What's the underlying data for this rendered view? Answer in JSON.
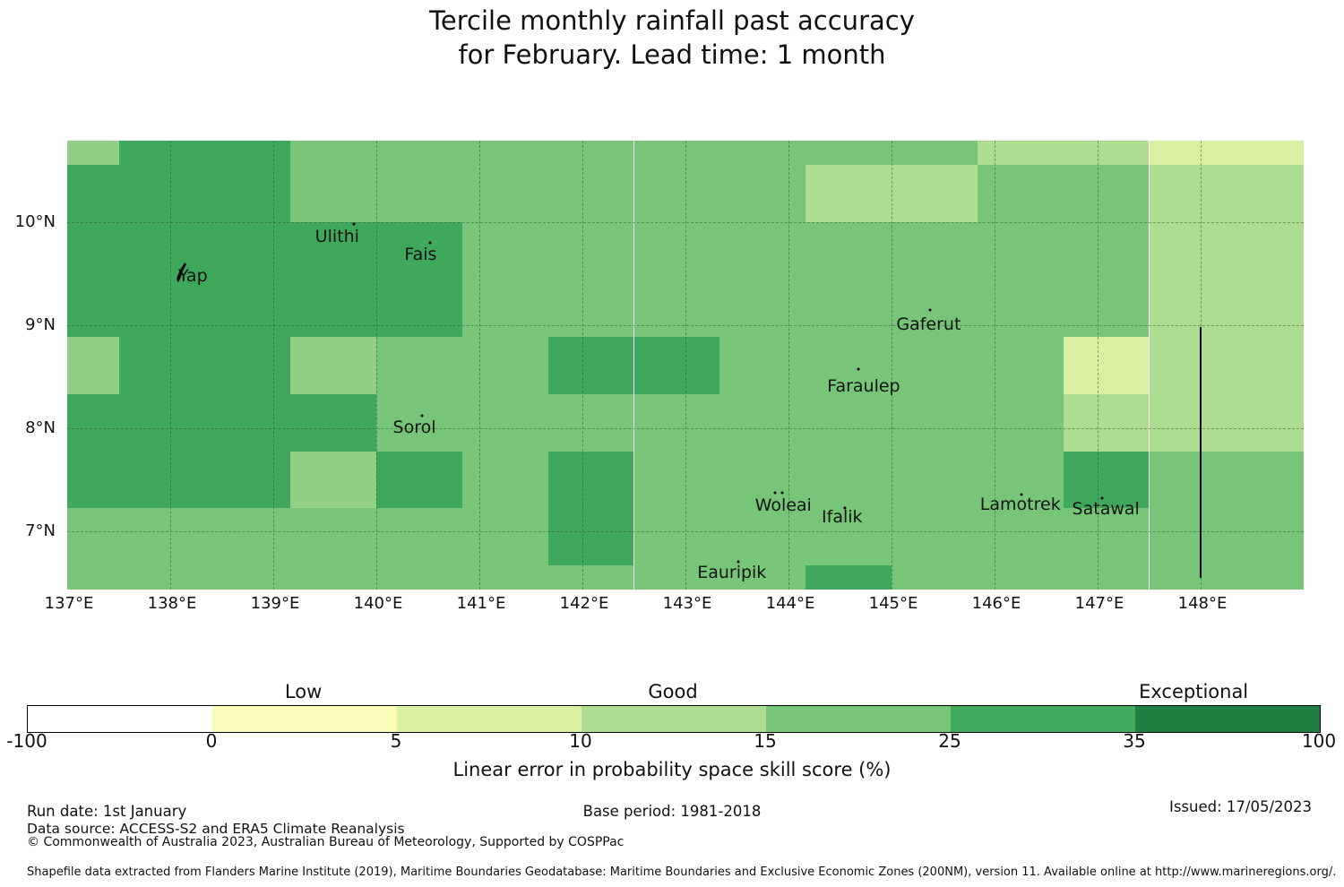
{
  "title": {
    "line1": "Tercile monthly rainfall past accuracy",
    "line2": "for February. Lead time: 1 month"
  },
  "chart_data": {
    "type": "heatmap",
    "title": "Tercile monthly rainfall past accuracy for February. Lead time: 1 month",
    "xlabel": "",
    "ylabel": "",
    "x_ticks": [
      "137°E",
      "138°E",
      "139°E",
      "140°E",
      "141°E",
      "142°E",
      "143°E",
      "144°E",
      "145°E",
      "146°E",
      "147°E",
      "148°E"
    ],
    "y_ticks": [
      "10°N",
      "9°N",
      "8°N",
      "7°N"
    ],
    "lon_range": [
      137.0,
      149.0
    ],
    "lat_range": [
      6.4348,
      10.7913
    ],
    "grid": {
      "on": true,
      "style": "dashed",
      "lons": [
        138,
        139,
        140,
        141,
        142,
        143,
        144,
        145,
        146,
        147,
        148
      ],
      "lats": [
        10,
        9,
        8,
        7
      ]
    },
    "col_bounds_lon": [
      137.0,
      137.5,
      138.3333,
      139.1667,
      140.0,
      140.8333,
      141.6667,
      142.5,
      143.3333,
      144.1667,
      145.0,
      145.8333,
      146.6667,
      147.5,
      148.3333,
      149.0
    ],
    "row_bounds_lat": [
      10.7913,
      10.5556,
      10.0,
      9.4444,
      8.8889,
      8.3333,
      7.7778,
      7.2222,
      6.6667,
      6.4348
    ],
    "cells_legend": "rows top-to-bottom; codes: D=25-35%, M=15-25%, N=~13-15%, L=10-15%, P=5-10% skill score bins",
    "cells": [
      "NDDMMMMMMMMLLPP",
      "DDDMMMMMMLLMMLL",
      "DDDDDMMMMMMMMLL",
      "DDDDDMMMMMMMMLL",
      "NDDNMMDDMMMMPLL",
      "DDDDMMMMMMMMLLL",
      "DDDNDMDMMMMMDMM",
      "MMMMMMDMMMMMMMM",
      "MMMMMMMMMDMMMMM"
    ],
    "palette": {
      "D": "#3fa85c",
      "M": "#77c578",
      "N": "#93d086",
      "L": "#addd8e",
      "P": "#d9f0a3"
    },
    "islands": [
      {
        "name": "Yap",
        "label_lon": 138.22,
        "label_lat": 9.48,
        "dots": [],
        "shape": "yap"
      },
      {
        "name": "Ulithi",
        "label_lon": 139.62,
        "label_lat": 9.86,
        "dots": [
          [
            139.78,
            9.98
          ]
        ]
      },
      {
        "name": "Fais",
        "label_lon": 140.43,
        "label_lat": 9.69,
        "dots": [
          [
            140.52,
            9.8
          ]
        ]
      },
      {
        "name": "Sorol",
        "label_lon": 140.37,
        "label_lat": 8.01,
        "dots": [
          [
            140.44,
            8.12
          ]
        ]
      },
      {
        "name": "Gaferut",
        "label_lon": 145.36,
        "label_lat": 9.01,
        "dots": [
          [
            145.37,
            9.15
          ]
        ]
      },
      {
        "name": "Faraulep",
        "label_lon": 144.73,
        "label_lat": 8.41,
        "dots": [
          [
            144.68,
            8.57
          ]
        ]
      },
      {
        "name": "Woleai",
        "label_lon": 143.95,
        "label_lat": 7.25,
        "dots": [
          [
            143.87,
            7.37
          ],
          [
            143.94,
            7.37
          ]
        ]
      },
      {
        "name": "Ifalik",
        "label_lon": 144.52,
        "label_lat": 7.14,
        "dots": [
          [
            144.55,
            7.23
          ]
        ]
      },
      {
        "name": "Eauripik",
        "label_lon": 143.45,
        "label_lat": 6.6,
        "dots": [
          [
            143.51,
            6.7
          ]
        ]
      },
      {
        "name": "Lamotrek",
        "label_lon": 146.25,
        "label_lat": 7.26,
        "dots": [
          [
            146.26,
            7.36
          ]
        ]
      },
      {
        "name": "Satawal",
        "label_lon": 147.08,
        "label_lat": 7.22,
        "dots": [
          [
            147.04,
            7.32
          ]
        ]
      }
    ],
    "eez_boundary_line": {
      "lon": 148.0,
      "lat_from": 8.98,
      "lat_to": 6.55,
      "color": "#000000"
    },
    "colorbar": {
      "tick_values": [
        "-100",
        "0",
        "5",
        "10",
        "15",
        "25",
        "35",
        "100"
      ],
      "segment_colors": [
        "#ffffff",
        "#f9fcb9",
        "#d9f0a3",
        "#addd8e",
        "#78c679",
        "#41ab5d",
        "#1f7e41"
      ],
      "zone_labels": [
        {
          "label": "Low",
          "pos": 0.214
        },
        {
          "label": "Good",
          "pos": 0.5
        },
        {
          "label": "Exceptional",
          "pos": 0.903
        }
      ],
      "caption": "Linear error in probability space skill score (%)"
    }
  },
  "footer": {
    "run_date": "Run date: 1st January",
    "base_period": "Base period: 1981-2018",
    "issued": "Issued: 17/05/2023",
    "data_source": "Data source: ACCESS-S2 and ERA5 Climate Reanalysis",
    "copyright": "© Commonwealth of Australia 2023, Australian Bureau of Meteorology, Supported by COSPPac",
    "shapefile_note": "Shapefile data extracted from Flanders Marine Institute (2019), Maritime Boundaries Geodatabase: Maritime Boundaries and Exclusive Economic Zones (200NM), version 11. Available online at http://www.marineregions.org/."
  }
}
